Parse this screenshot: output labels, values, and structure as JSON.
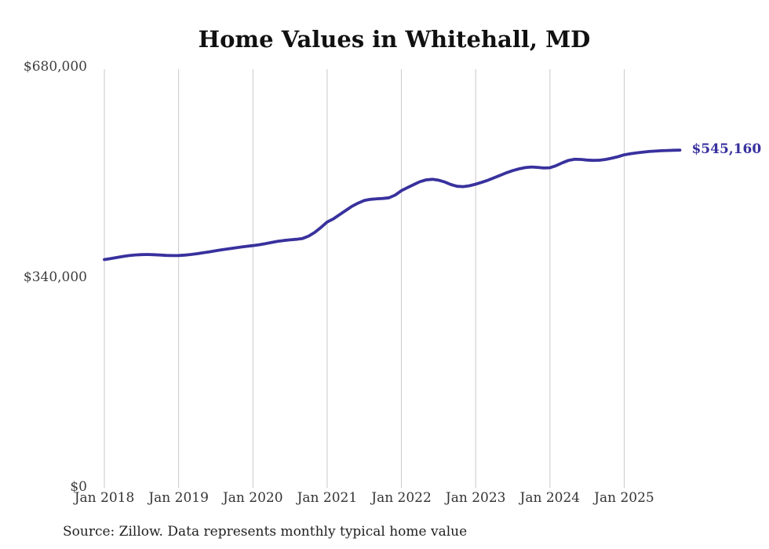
{
  "chart": {
    "title": "Home Values in Whitehall, MD",
    "end_label": "$545,160",
    "source_note": "Source: Zillow. Data represents monthly typical home value",
    "colors": {
      "line": "#38319d",
      "end_label": "#38319d",
      "grid": "#c9c9c9",
      "title_text": "#111111",
      "axis_text": "#3e3e3e",
      "source_text": "#1f1f1f",
      "background": "#ffffff"
    }
  },
  "chart_data": {
    "type": "line",
    "title": "Home Values in Whitehall, MD",
    "xlabel": "",
    "ylabel": "",
    "frequency": "monthly",
    "x_start": "Jan 2018",
    "x_end": "Oct 2025",
    "x_tick_labels": [
      "Jan 2018",
      "Jan 2019",
      "Jan 2020",
      "Jan 2021",
      "Jan 2022",
      "Jan 2023",
      "Jan 2024",
      "Jan 2025"
    ],
    "y_tick_labels": [
      "$0",
      "$340,000",
      "$680,000"
    ],
    "y_tick_values": [
      0,
      340000,
      680000
    ],
    "ylim": [
      0,
      680000
    ],
    "grid": "vertical-only",
    "legend": "none",
    "final_value": 545160,
    "final_value_label": "$545,160",
    "series": [
      {
        "name": "Typical home value",
        "values": [
          368000,
          369600,
          371300,
          373000,
          374400,
          375400,
          376000,
          376200,
          375900,
          375300,
          374700,
          374400,
          374600,
          375200,
          376200,
          377500,
          379000,
          380600,
          382200,
          383800,
          385300,
          386800,
          388200,
          389500,
          390600,
          392000,
          393800,
          395700,
          397400,
          398800,
          399900,
          400800,
          402000,
          406000,
          412000,
          420000,
          428700,
          433800,
          440700,
          447400,
          454200,
          459300,
          463500,
          465400,
          466300,
          466800,
          468000,
          472500,
          479600,
          484500,
          489400,
          494000,
          497000,
          497800,
          496500,
          493500,
          489400,
          486500,
          486000,
          487500,
          490000,
          493000,
          496500,
          500500,
          504500,
          508500,
          512000,
          514800,
          516800,
          517800,
          517200,
          516200,
          516500,
          520000,
          524500,
          528500,
          530300,
          530000,
          529000,
          528500,
          528800,
          530000,
          532000,
          534500,
          537500,
          539200,
          540700,
          541900,
          542800,
          543500,
          544100,
          544500,
          544900,
          545160
        ]
      }
    ]
  }
}
